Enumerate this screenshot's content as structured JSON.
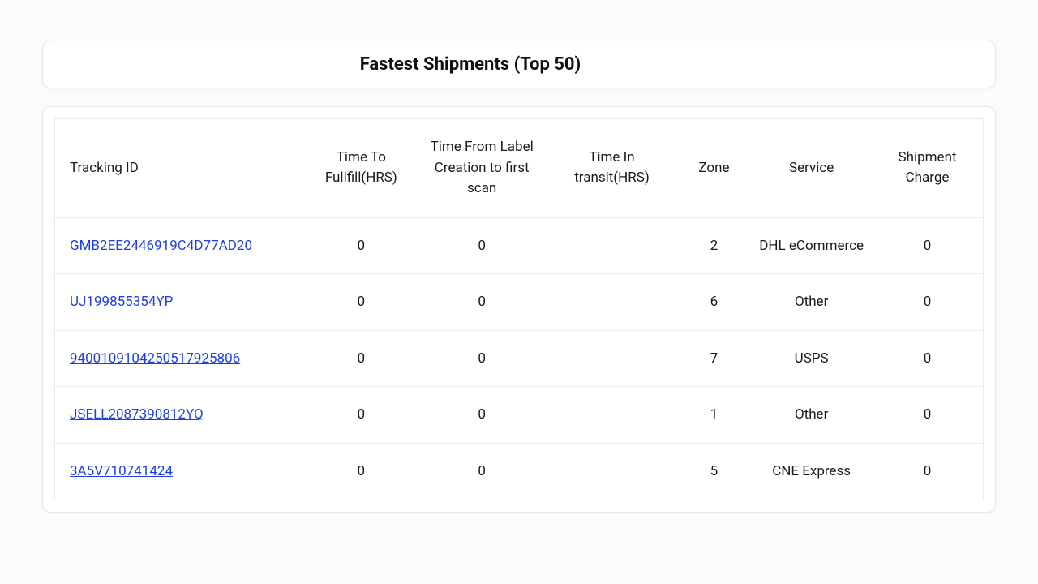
{
  "title": "Fastest Shipments (Top 50)",
  "columns": [
    "Tracking ID",
    "Time To Fullfill(HRS)",
    "Time From Label Creation to first scan",
    "Time In transit(HRS)",
    "Zone",
    "Service",
    "Shipment Charge"
  ],
  "rows": [
    {
      "tracking": "GMB2EE2446919C4D77AD20",
      "fulfill": "0",
      "label_to_scan": "0",
      "transit": "",
      "zone": "2",
      "service": "DHL eCommerce",
      "charge": "0"
    },
    {
      "tracking": "UJ199855354YP",
      "fulfill": "0",
      "label_to_scan": "0",
      "transit": "",
      "zone": "6",
      "service": "Other",
      "charge": "0"
    },
    {
      "tracking": "9400109104250517925806",
      "fulfill": "0",
      "label_to_scan": "0",
      "transit": "",
      "zone": "7",
      "service": "USPS",
      "charge": "0"
    },
    {
      "tracking": "JSELL2087390812YQ",
      "fulfill": "0",
      "label_to_scan": "0",
      "transit": "",
      "zone": "1",
      "service": "Other",
      "charge": "0"
    },
    {
      "tracking": "3A5V710741424",
      "fulfill": "0",
      "label_to_scan": "0",
      "transit": "",
      "zone": "5",
      "service": "CNE Express",
      "charge": "0"
    }
  ],
  "colors": {
    "link": "#1d3fe4",
    "border": "#eceaea",
    "card_border": "#e5e5e5",
    "background": "#fbfbfb",
    "card_bg": "#ffffff",
    "text": "#1a1a1a"
  }
}
